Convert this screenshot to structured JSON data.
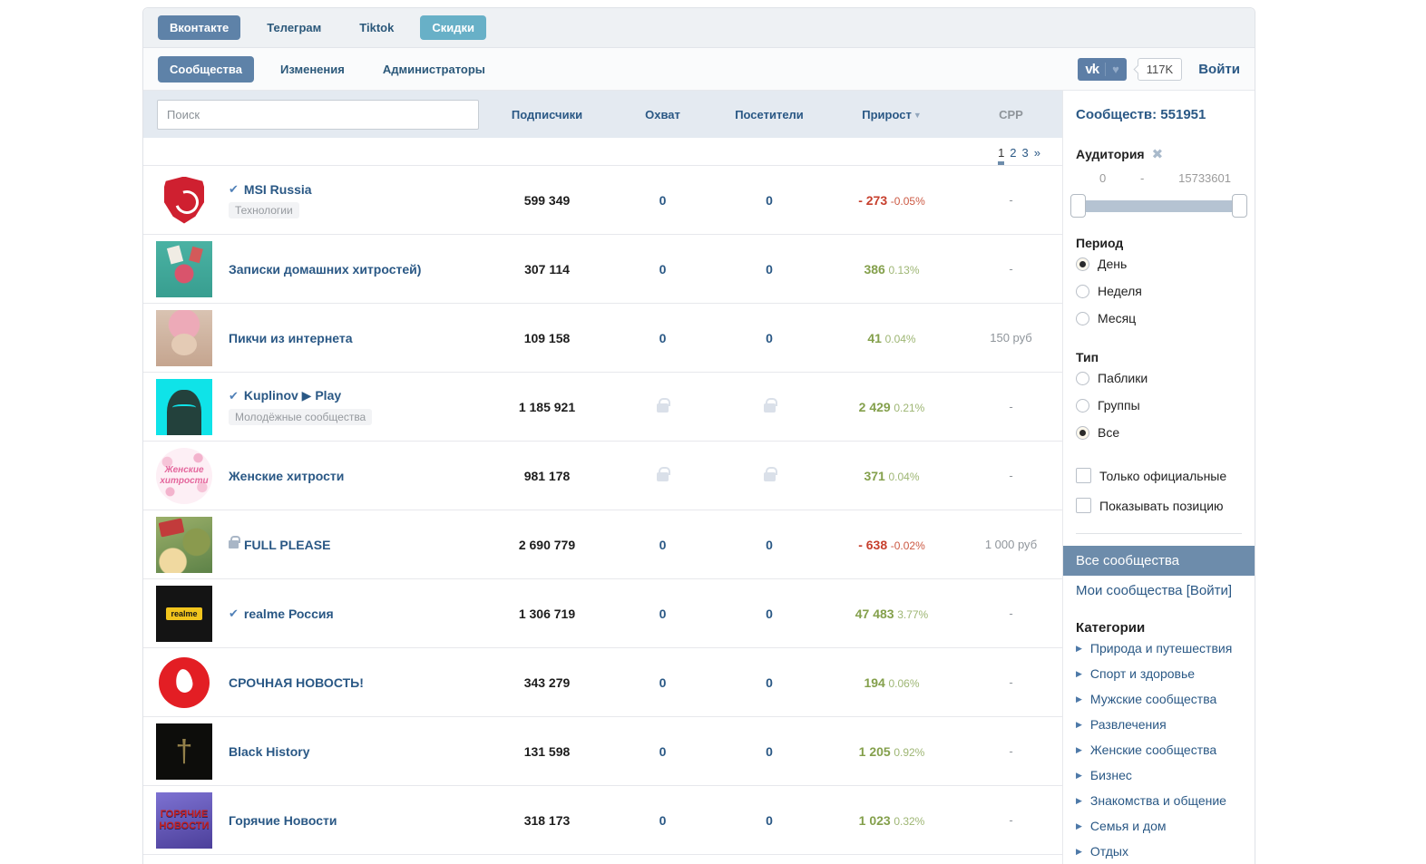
{
  "colors": {
    "accent_blue": "#5e82a8",
    "accent_teal": "#68b0c7",
    "link": "#2a5885",
    "growth_up": "#84a04c",
    "growth_down": "#c7402e",
    "selected_nav": "#6d8cab",
    "header_band": "#e4eaf1"
  },
  "top_tabs": [
    {
      "label": "Вконтакте",
      "state": "active"
    },
    {
      "label": "Телеграм",
      "state": "normal"
    },
    {
      "label": "Tiktok",
      "state": "normal"
    },
    {
      "label": "Скидки",
      "state": "accent"
    }
  ],
  "toolbar": {
    "tabs": [
      {
        "label": "Сообщества",
        "active": true
      },
      {
        "label": "Изменения",
        "active": false
      },
      {
        "label": "Администраторы",
        "active": false
      }
    ],
    "vk_widget": {
      "logo": "vk",
      "heart": "♥",
      "likes": "117K"
    },
    "login_label": "Войти"
  },
  "table": {
    "search_placeholder": "Поиск",
    "columns": [
      {
        "label": "Подписчики",
        "sort": false
      },
      {
        "label": "Охват",
        "sort": false
      },
      {
        "label": "Посетители",
        "sort": false
      },
      {
        "label": "Прирост",
        "sort": true
      },
      {
        "label": "CPP",
        "sort": false
      }
    ],
    "sort_arrow": "▼",
    "pagination": [
      {
        "label": "1",
        "active": true
      },
      {
        "label": "2",
        "active": false
      },
      {
        "label": "3",
        "active": false
      },
      {
        "label": "»",
        "active": false
      }
    ],
    "rows": [
      {
        "name": "MSI Russia",
        "verified": true,
        "locked": false,
        "category": "Технологии",
        "avatar": "msi",
        "avatar_text": "",
        "subscribers": "599 349",
        "reach": "0",
        "visitors": "0",
        "growth": "- 273",
        "growth_pct": "-0.05%",
        "growth_dir": "down",
        "cpp": "-"
      },
      {
        "name": "Записки домашних хитростей)",
        "verified": false,
        "locked": false,
        "category": "",
        "avatar": "hands",
        "avatar_text": "",
        "subscribers": "307 114",
        "reach": "0",
        "visitors": "0",
        "growth": "386",
        "growth_pct": "0.13%",
        "growth_dir": "up",
        "cpp": "-"
      },
      {
        "name": "Пикчи из интернета",
        "verified": false,
        "locked": false,
        "category": "",
        "avatar": "cat",
        "avatar_text": "",
        "subscribers": "109 158",
        "reach": "0",
        "visitors": "0",
        "growth": "41",
        "growth_pct": "0.04%",
        "growth_dir": "up",
        "cpp": "150 руб"
      },
      {
        "name": "Kuplinov ▶ Play",
        "verified": true,
        "locked": false,
        "category": "Молодёжные сообщества",
        "avatar": "kuplinov",
        "avatar_text": "",
        "subscribers": "1 185 921",
        "reach": "lock",
        "visitors": "lock",
        "growth": "2 429",
        "growth_pct": "0.21%",
        "growth_dir": "up",
        "cpp": "-"
      },
      {
        "name": "Женские хитрости",
        "verified": false,
        "locked": false,
        "category": "",
        "avatar": "pink",
        "avatar_text": "Женские хитрости",
        "subscribers": "981 178",
        "reach": "lock",
        "visitors": "lock",
        "growth": "371",
        "growth_pct": "0.04%",
        "growth_dir": "up",
        "cpp": "-"
      },
      {
        "name": "FULL PLEASE",
        "verified": false,
        "locked": true,
        "category": "",
        "avatar": "full",
        "avatar_text": "",
        "subscribers": "2 690 779",
        "reach": "0",
        "visitors": "0",
        "growth": "- 638",
        "growth_pct": "-0.02%",
        "growth_dir": "down",
        "cpp": "1 000 руб"
      },
      {
        "name": "realme Россия",
        "verified": true,
        "locked": false,
        "category": "",
        "avatar": "realme",
        "avatar_text": "realme",
        "subscribers": "1 306 719",
        "reach": "0",
        "visitors": "0",
        "growth": "47 483",
        "growth_pct": "3.77%",
        "growth_dir": "up",
        "cpp": "-"
      },
      {
        "name": "СРОЧНАЯ НОВОСТЬ!",
        "verified": false,
        "locked": false,
        "category": "",
        "avatar": "flame",
        "avatar_text": "",
        "subscribers": "343 279",
        "reach": "0",
        "visitors": "0",
        "growth": "194",
        "growth_pct": "0.06%",
        "growth_dir": "up",
        "cpp": "-"
      },
      {
        "name": "Black History",
        "verified": false,
        "locked": false,
        "category": "",
        "avatar": "sword",
        "avatar_text": "†",
        "subscribers": "131 598",
        "reach": "0",
        "visitors": "0",
        "growth": "1 205",
        "growth_pct": "0.92%",
        "growth_dir": "up",
        "cpp": "-"
      },
      {
        "name": "Горячие Новости",
        "verified": false,
        "locked": false,
        "category": "",
        "avatar": "hotnews",
        "avatar_text": "ГОРЯЧИЕ НОВОСТИ",
        "subscribers": "318 173",
        "reach": "0",
        "visitors": "0",
        "growth": "1 023",
        "growth_pct": "0.32%",
        "growth_dir": "up",
        "cpp": "-"
      }
    ]
  },
  "sidebar": {
    "total_label": "Сообществ: 551951",
    "audience": {
      "label": "Аудитория",
      "close_icon": "✖",
      "min": "0",
      "sep": "-",
      "max": "15733601"
    },
    "period": {
      "label": "Период",
      "options": [
        {
          "label": "День",
          "checked": true
        },
        {
          "label": "Неделя",
          "checked": false
        },
        {
          "label": "Месяц",
          "checked": false
        }
      ]
    },
    "type": {
      "label": "Тип",
      "options": [
        {
          "label": "Паблики",
          "checked": false
        },
        {
          "label": "Группы",
          "checked": false
        },
        {
          "label": "Все",
          "checked": true
        }
      ]
    },
    "checkboxes": [
      {
        "label": "Только официальные",
        "checked": false
      },
      {
        "label": "Показывать позицию",
        "checked": false
      }
    ],
    "nav": [
      {
        "label": "Все сообщества",
        "active": true
      },
      {
        "label": "Мои сообщества [Войти]",
        "active": false
      }
    ],
    "categories": {
      "label": "Категории",
      "arrow": "▶",
      "items": [
        "Природа и путешествия",
        "Спорт и здоровье",
        "Мужские сообщества",
        "Развлечения",
        "Женские сообщества",
        "Бизнес",
        "Знакомства и общение",
        "Семья и дом",
        "Отдых"
      ]
    }
  }
}
